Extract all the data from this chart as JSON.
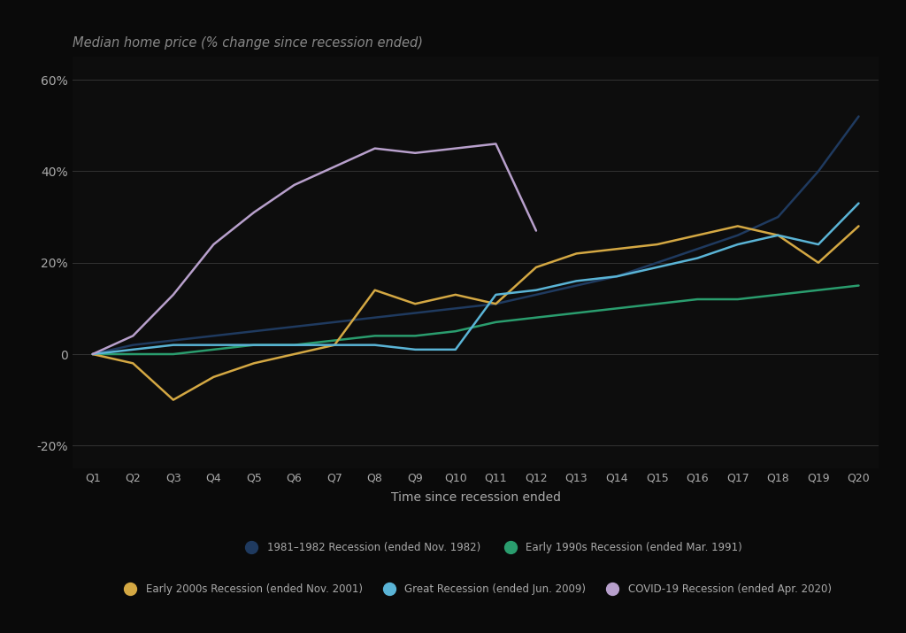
{
  "title": "Median home price (% change since recession ended)",
  "xlabel": "Time since recession ended",
  "quarters": [
    "Q1",
    "Q2",
    "Q3",
    "Q4",
    "Q5",
    "Q6",
    "Q7",
    "Q8",
    "Q9",
    "Q10",
    "Q11",
    "Q12",
    "Q13",
    "Q14",
    "Q15",
    "Q16",
    "Q17",
    "Q18",
    "Q19",
    "Q20"
  ],
  "ylim": [
    -25,
    65
  ],
  "yticks": [
    -20,
    0,
    20,
    40,
    60
  ],
  "ytick_labels": [
    "-20%",
    "0",
    "20%",
    "40%",
    "60%"
  ],
  "background_color": "#0a0a0a",
  "plot_bg_color": "#0d0d0d",
  "grid_color": "#333333",
  "text_color": "#aaaaaa",
  "title_color": "#888888",
  "series": [
    {
      "label": "1981–1982 Recession (ended Nov. 1982)",
      "color": "#1f3a5f",
      "data": [
        0,
        2,
        3,
        4,
        5,
        6,
        7,
        8,
        9,
        10,
        11,
        13,
        15,
        17,
        20,
        23,
        26,
        30,
        40,
        52
      ]
    },
    {
      "label": "Early 1990s Recession (ended Mar. 1991)",
      "color": "#2a9d6e",
      "data": [
        0,
        0,
        0,
        1,
        2,
        2,
        3,
        4,
        4,
        5,
        7,
        8,
        9,
        10,
        11,
        12,
        12,
        13,
        14,
        15
      ]
    },
    {
      "label": "Early 2000s Recession (ended Nov. 2001)",
      "color": "#d4a843",
      "data": [
        0,
        -2,
        -10,
        -5,
        -2,
        0,
        2,
        14,
        11,
        13,
        11,
        19,
        22,
        23,
        24,
        26,
        28,
        26,
        20,
        28
      ]
    },
    {
      "label": "Great Recession (ended Jun. 2009)",
      "color": "#5ab4d6",
      "data": [
        0,
        1,
        2,
        2,
        2,
        2,
        2,
        2,
        1,
        1,
        13,
        14,
        16,
        17,
        19,
        21,
        24,
        26,
        24,
        33
      ]
    },
    {
      "label": "COVID-19 Recession (ended Apr. 2020)",
      "color": "#b8a0cc",
      "data": [
        0,
        4,
        13,
        24,
        31,
        37,
        41,
        45,
        44,
        45,
        46,
        27,
        null,
        null,
        null,
        null,
        null,
        null,
        null,
        null
      ]
    }
  ]
}
